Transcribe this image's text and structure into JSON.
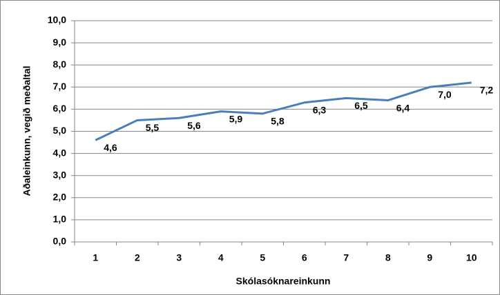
{
  "chart_data": {
    "type": "line",
    "y_label": "Aðaleinkunn, vegið meðaltal",
    "x_label": "Skólasóknareinkunn",
    "categories": [
      "1",
      "2",
      "3",
      "4",
      "5",
      "6",
      "7",
      "8",
      "9",
      "10"
    ],
    "values": [
      4.6,
      5.5,
      5.6,
      5.9,
      5.8,
      6.3,
      6.5,
      6.4,
      7.0,
      7.2
    ],
    "value_labels": [
      "4,6",
      "5,5",
      "5,6",
      "5,9",
      "5,8",
      "6,3",
      "6,5",
      "6,4",
      "7,0",
      "7,2"
    ],
    "color": "#4a7ebb",
    "ylim": [
      0,
      10
    ],
    "yticks": [
      {
        "value": 0,
        "label": "0,0"
      },
      {
        "value": 1,
        "label": "1,0"
      },
      {
        "value": 2,
        "label": "2,0"
      },
      {
        "value": 3,
        "label": "3,0"
      },
      {
        "value": 4,
        "label": "4,0"
      },
      {
        "value": 5,
        "label": "5,0"
      },
      {
        "value": 6,
        "label": "6,0"
      },
      {
        "value": 7,
        "label": "7,0"
      },
      {
        "value": 8,
        "label": "8,0"
      },
      {
        "value": 9,
        "label": "9,0"
      },
      {
        "value": 10,
        "label": "10,0"
      }
    ],
    "grid": true
  }
}
